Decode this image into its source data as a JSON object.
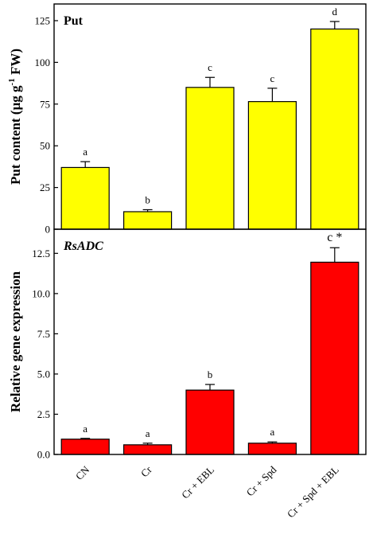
{
  "chart_data": [
    {
      "type": "bar",
      "title": "Put",
      "title_style": "bold",
      "ylabel": "Put content (µg g-1 FW)",
      "ylabel_parts": {
        "pre": "Put content (µg g",
        "sup": "-1",
        "post": " FW)"
      },
      "ylim": [
        0,
        135
      ],
      "yticks": [
        0,
        25,
        50,
        75,
        100,
        125
      ],
      "categories": [
        "CN",
        "Cr",
        "Cr + EBL",
        "Cr + Spd",
        "Cr + Spd + EBL"
      ],
      "values": [
        37,
        10.5,
        85,
        76.5,
        120
      ],
      "errors": [
        3.5,
        1.2,
        6,
        8,
        4.5
      ],
      "significance": [
        "a",
        "b",
        "c",
        "c",
        "d"
      ],
      "bar_color": "#ffff00",
      "grid": false
    },
    {
      "type": "bar",
      "title": "RsADC",
      "title_style": "bold italic",
      "ylabel": "Relative gene expression",
      "ylim": [
        0,
        14
      ],
      "yticks": [
        0.0,
        2.5,
        5.0,
        7.5,
        10.0,
        12.5
      ],
      "ytick_labels": [
        "0.0",
        "2.5",
        "5.0",
        "7.5",
        "10.0",
        "12.5"
      ],
      "categories": [
        "CN",
        "Cr",
        "Cr + EBL",
        "Cr + Spd",
        "Cr + Spd + EBL"
      ],
      "values": [
        0.95,
        0.6,
        4.0,
        0.7,
        11.95
      ],
      "errors": [
        0.05,
        0.1,
        0.35,
        0.08,
        0.9
      ],
      "significance": [
        "a",
        "a",
        "b",
        "a",
        "c *"
      ],
      "bar_color": "#ff0000",
      "grid": false
    }
  ]
}
